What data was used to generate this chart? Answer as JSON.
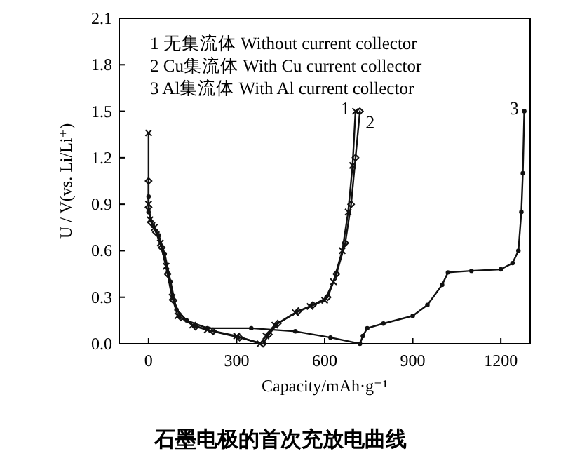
{
  "chart_data": {
    "type": "line",
    "title": "石墨电极的首次充放电曲线",
    "xlabel": "Capacity/mAh·g⁻¹",
    "ylabel": "U / V(vs. Li/Li⁺)",
    "xlim": [
      -100,
      1300
    ],
    "ylim": [
      0,
      2.1
    ],
    "xticks": [
      0,
      300,
      600,
      900,
      1200
    ],
    "yticks": [
      {
        "value": 0,
        "label": "0.0"
      },
      0.3,
      0.6,
      0.9,
      1.2,
      1.5,
      1.8,
      2.1
    ],
    "series": [
      {
        "color": "#111111",
        "marker": "cross",
        "x": [
          0,
          0,
          5,
          20,
          40,
          60,
          80,
          100,
          150,
          200,
          300,
          380,
          400,
          430,
          500,
          550,
          600,
          630,
          660,
          680,
          695,
          705
        ],
        "values": [
          1.36,
          0.9,
          0.8,
          0.75,
          0.65,
          0.5,
          0.3,
          0.18,
          0.12,
          0.09,
          0.05,
          0.0,
          0.05,
          0.12,
          0.2,
          0.24,
          0.28,
          0.4,
          0.6,
          0.85,
          1.15,
          1.5
        ]
      },
      {
        "color": "#111111",
        "marker": "diamond",
        "x": [
          0,
          0,
          10,
          25,
          45,
          65,
          85,
          110,
          160,
          220,
          310,
          390,
          410,
          440,
          510,
          560,
          610,
          640,
          670,
          690,
          705,
          720
        ],
        "values": [
          1.05,
          0.88,
          0.78,
          0.72,
          0.62,
          0.45,
          0.28,
          0.17,
          0.11,
          0.08,
          0.04,
          0.0,
          0.06,
          0.13,
          0.21,
          0.25,
          0.3,
          0.45,
          0.65,
          0.9,
          1.2,
          1.5
        ]
      },
      {
        "color": "#111111",
        "marker": "circle",
        "x": [
          0,
          0,
          15,
          35,
          55,
          75,
          95,
          130,
          200,
          350,
          500,
          620,
          720,
          730,
          745,
          800,
          900,
          950,
          1000,
          1020,
          1100,
          1200,
          1240,
          1260,
          1270,
          1275,
          1280
        ],
        "values": [
          0.95,
          0.85,
          0.76,
          0.7,
          0.58,
          0.4,
          0.22,
          0.15,
          0.1,
          0.1,
          0.08,
          0.04,
          0.0,
          0.05,
          0.1,
          0.13,
          0.18,
          0.25,
          0.38,
          0.46,
          0.47,
          0.48,
          0.52,
          0.6,
          0.85,
          1.1,
          1.5
        ]
      }
    ],
    "annotations": [
      "1  无集流体 Without current collector",
      "2  Cu集流体 With Cu current collector",
      "3  Al集流体 With Al current collector",
      {
        "text": "1",
        "x": 705,
        "y": 1.5
      },
      {
        "text": "2",
        "x": 720,
        "y": 1.5
      },
      {
        "text": "3",
        "x": 1280,
        "y": 1.5
      }
    ]
  }
}
